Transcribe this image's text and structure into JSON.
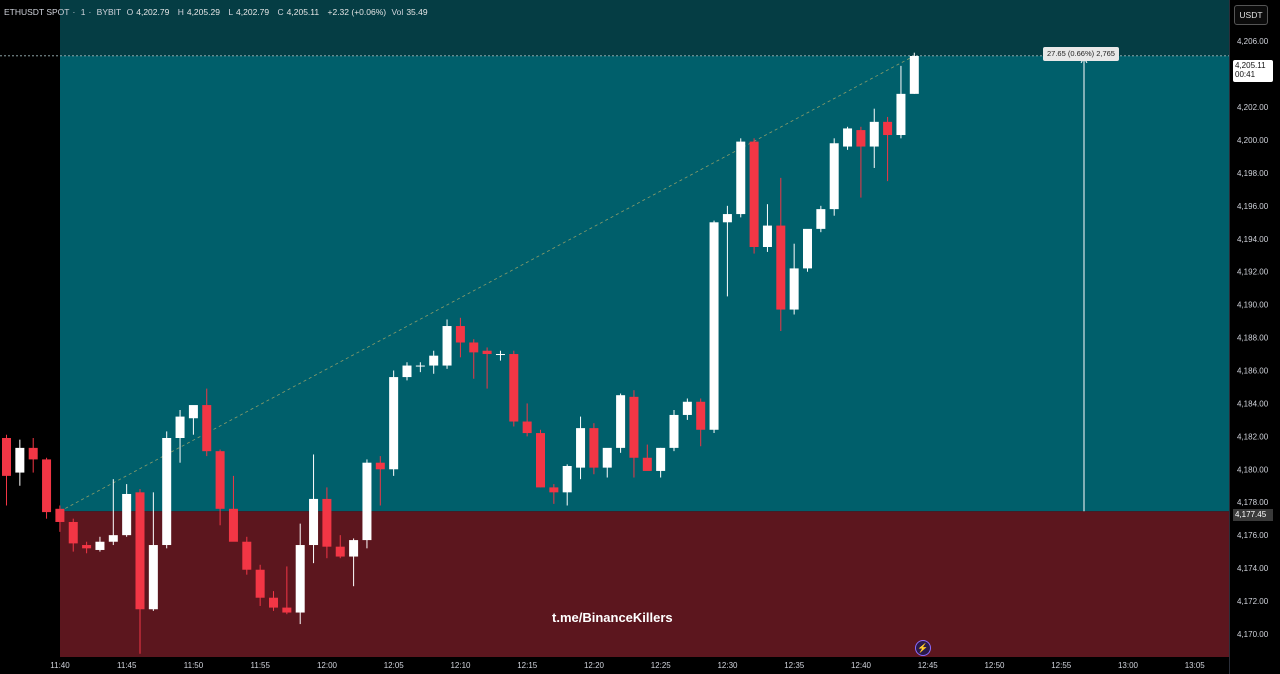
{
  "header": {
    "symbol": "ETHUSDT SPOT",
    "sep1": "·",
    "interval": "1",
    "sep2": "·",
    "exchange": "BYBIT",
    "open_label": "O",
    "open": "4,202.79",
    "high_label": "H",
    "high": "4,205.29",
    "low_label": "L",
    "low": "4,202.79",
    "close_label": "C",
    "close": "4,205.11",
    "change": "+2.32 (+0.06%)",
    "vol_label": "Vol",
    "vol": "35.49"
  },
  "unit": "USDT",
  "current_price_tag": {
    "price": "4,205.11",
    "countdown": "00:41"
  },
  "entry_price_tag": "4,177.45",
  "measure_label": "27.65 (0.66%) 2,765",
  "watermark": "t.me/BinanceKillers",
  "colors": {
    "background": "#000000",
    "up": "#ffffff",
    "down": "#f23645",
    "profit_zone": "#005f6b",
    "profit_zone_top": "#053d44",
    "loss_zone": "#5c161e"
  },
  "chart_data": {
    "type": "candlestick",
    "title": "ETHUSDT SPOT · 1 · BYBIT",
    "y_axis": {
      "ylim": [
        4168.6,
        4208.5
      ],
      "ticks": [
        "4,170.00",
        "4,172.00",
        "4,174.00",
        "4,176.00",
        "4,178.00",
        "4,180.00",
        "4,182.00",
        "4,184.00",
        "4,186.00",
        "4,188.00",
        "4,190.00",
        "4,192.00",
        "4,194.00",
        "4,196.00",
        "4,198.00",
        "4,200.00",
        "4,202.00",
        "4,204.00",
        "4,206.00"
      ]
    },
    "x_axis": {
      "ticks": [
        "11:40",
        "11:45",
        "11:50",
        "11:55",
        "12:00",
        "12:05",
        "12:10",
        "12:15",
        "12:20",
        "12:25",
        "12:30",
        "12:35",
        "12:40",
        "12:45",
        "12:50",
        "12:55",
        "13:00",
        "13:05"
      ]
    },
    "position": {
      "entry": 4177.45,
      "target": 4205.11,
      "top": 4208.5,
      "bottom": 4168.6
    },
    "candles": [
      {
        "o": 4181.9,
        "h": 4182.1,
        "l": 4177.8,
        "c": 4179.6
      },
      {
        "o": 4179.8,
        "h": 4181.8,
        "l": 4179.0,
        "c": 4181.3
      },
      {
        "o": 4181.3,
        "h": 4181.9,
        "l": 4179.8,
        "c": 4180.6
      },
      {
        "o": 4180.6,
        "h": 4180.7,
        "l": 4177.0,
        "c": 4177.4
      },
      {
        "o": 4177.6,
        "h": 4177.8,
        "l": 4176.2,
        "c": 4176.8
      },
      {
        "o": 4176.8,
        "h": 4177.0,
        "l": 4175.0,
        "c": 4175.5
      },
      {
        "o": 4175.4,
        "h": 4175.6,
        "l": 4174.9,
        "c": 4175.2
      },
      {
        "o": 4175.1,
        "h": 4175.9,
        "l": 4175.0,
        "c": 4175.6
      },
      {
        "o": 4175.6,
        "h": 4179.4,
        "l": 4175.4,
        "c": 4176.0
      },
      {
        "o": 4176.0,
        "h": 4179.1,
        "l": 4175.9,
        "c": 4178.5
      },
      {
        "o": 4178.6,
        "h": 4178.8,
        "l": 4168.8,
        "c": 4171.5
      },
      {
        "o": 4171.5,
        "h": 4178.6,
        "l": 4171.4,
        "c": 4175.4
      },
      {
        "o": 4175.4,
        "h": 4182.3,
        "l": 4175.2,
        "c": 4181.9
      },
      {
        "o": 4181.9,
        "h": 4183.6,
        "l": 4180.4,
        "c": 4183.2
      },
      {
        "o": 4183.1,
        "h": 4183.8,
        "l": 4182.1,
        "c": 4183.9
      },
      {
        "o": 4183.9,
        "h": 4184.9,
        "l": 4180.8,
        "c": 4181.1
      },
      {
        "o": 4181.1,
        "h": 4181.2,
        "l": 4176.6,
        "c": 4177.6
      },
      {
        "o": 4177.6,
        "h": 4179.6,
        "l": 4175.8,
        "c": 4175.6
      },
      {
        "o": 4175.6,
        "h": 4175.9,
        "l": 4173.6,
        "c": 4173.9
      },
      {
        "o": 4173.9,
        "h": 4174.2,
        "l": 4171.7,
        "c": 4172.2
      },
      {
        "o": 4172.2,
        "h": 4172.6,
        "l": 4171.4,
        "c": 4171.6
      },
      {
        "o": 4171.6,
        "h": 4174.1,
        "l": 4171.2,
        "c": 4171.3
      },
      {
        "o": 4171.3,
        "h": 4176.7,
        "l": 4170.6,
        "c": 4175.4
      },
      {
        "o": 4175.4,
        "h": 4180.9,
        "l": 4174.3,
        "c": 4178.2
      },
      {
        "o": 4178.2,
        "h": 4178.9,
        "l": 4174.6,
        "c": 4175.3
      },
      {
        "o": 4175.3,
        "h": 4176.0,
        "l": 4174.6,
        "c": 4174.7
      },
      {
        "o": 4174.7,
        "h": 4175.8,
        "l": 4172.9,
        "c": 4175.7
      },
      {
        "o": 4175.7,
        "h": 4180.6,
        "l": 4175.2,
        "c": 4180.4
      },
      {
        "o": 4180.4,
        "h": 4180.8,
        "l": 4177.8,
        "c": 4180.0
      },
      {
        "o": 4180.0,
        "h": 4186.0,
        "l": 4179.6,
        "c": 4185.6
      },
      {
        "o": 4185.6,
        "h": 4186.5,
        "l": 4185.4,
        "c": 4186.3
      },
      {
        "o": 4186.3,
        "h": 4186.5,
        "l": 4185.9,
        "c": 4186.3
      },
      {
        "o": 4186.3,
        "h": 4187.2,
        "l": 4185.8,
        "c": 4186.9
      },
      {
        "o": 4186.3,
        "h": 4189.1,
        "l": 4186.1,
        "c": 4188.7
      },
      {
        "o": 4188.7,
        "h": 4189.2,
        "l": 4186.8,
        "c": 4187.7
      },
      {
        "o": 4187.7,
        "h": 4187.9,
        "l": 4185.5,
        "c": 4187.1
      },
      {
        "o": 4187.2,
        "h": 4187.4,
        "l": 4184.9,
        "c": 4187.0
      },
      {
        "o": 4187.0,
        "h": 4187.2,
        "l": 4186.6,
        "c": 4187.0
      },
      {
        "o": 4187.0,
        "h": 4187.2,
        "l": 4182.6,
        "c": 4182.9
      },
      {
        "o": 4182.9,
        "h": 4184.0,
        "l": 4182.0,
        "c": 4182.2
      },
      {
        "o": 4182.2,
        "h": 4182.4,
        "l": 4178.9,
        "c": 4178.9
      },
      {
        "o": 4178.9,
        "h": 4179.1,
        "l": 4177.9,
        "c": 4178.6
      },
      {
        "o": 4178.6,
        "h": 4180.3,
        "l": 4177.8,
        "c": 4180.2
      },
      {
        "o": 4180.1,
        "h": 4183.2,
        "l": 4179.4,
        "c": 4182.5
      },
      {
        "o": 4182.5,
        "h": 4182.8,
        "l": 4179.7,
        "c": 4180.1
      },
      {
        "o": 4180.1,
        "h": 4181.2,
        "l": 4179.5,
        "c": 4181.3
      },
      {
        "o": 4181.3,
        "h": 4184.6,
        "l": 4181.0,
        "c": 4184.5
      },
      {
        "o": 4184.4,
        "h": 4184.8,
        "l": 4179.5,
        "c": 4180.7
      },
      {
        "o": 4180.7,
        "h": 4181.5,
        "l": 4180.0,
        "c": 4179.9
      },
      {
        "o": 4179.9,
        "h": 4181.3,
        "l": 4179.5,
        "c": 4181.3
      },
      {
        "o": 4181.3,
        "h": 4183.6,
        "l": 4181.1,
        "c": 4183.3
      },
      {
        "o": 4183.3,
        "h": 4184.3,
        "l": 4183.0,
        "c": 4184.1
      },
      {
        "o": 4184.1,
        "h": 4184.3,
        "l": 4181.4,
        "c": 4182.4
      },
      {
        "o": 4182.4,
        "h": 4195.1,
        "l": 4182.2,
        "c": 4195.0
      },
      {
        "o": 4195.0,
        "h": 4196.0,
        "l": 4190.5,
        "c": 4195.5
      },
      {
        "o": 4195.5,
        "h": 4200.1,
        "l": 4195.3,
        "c": 4199.9
      },
      {
        "o": 4199.9,
        "h": 4200.1,
        "l": 4193.1,
        "c": 4193.5
      },
      {
        "o": 4193.5,
        "h": 4196.1,
        "l": 4193.2,
        "c": 4194.8
      },
      {
        "o": 4194.8,
        "h": 4197.7,
        "l": 4188.4,
        "c": 4189.7
      },
      {
        "o": 4189.7,
        "h": 4193.7,
        "l": 4189.4,
        "c": 4192.2
      },
      {
        "o": 4192.2,
        "h": 4194.5,
        "l": 4192.0,
        "c": 4194.6
      },
      {
        "o": 4194.6,
        "h": 4196.0,
        "l": 4194.4,
        "c": 4195.8
      },
      {
        "o": 4195.8,
        "h": 4200.1,
        "l": 4195.4,
        "c": 4199.8
      },
      {
        "o": 4199.6,
        "h": 4200.8,
        "l": 4199.4,
        "c": 4200.7
      },
      {
        "o": 4200.6,
        "h": 4200.8,
        "l": 4196.5,
        "c": 4199.6
      },
      {
        "o": 4199.6,
        "h": 4201.9,
        "l": 4198.3,
        "c": 4201.1
      },
      {
        "o": 4201.1,
        "h": 4201.4,
        "l": 4197.5,
        "c": 4200.3
      },
      {
        "o": 4200.3,
        "h": 4204.5,
        "l": 4200.1,
        "c": 4202.8
      },
      {
        "o": 4202.8,
        "h": 4205.3,
        "l": 4202.8,
        "c": 4205.1
      }
    ]
  }
}
